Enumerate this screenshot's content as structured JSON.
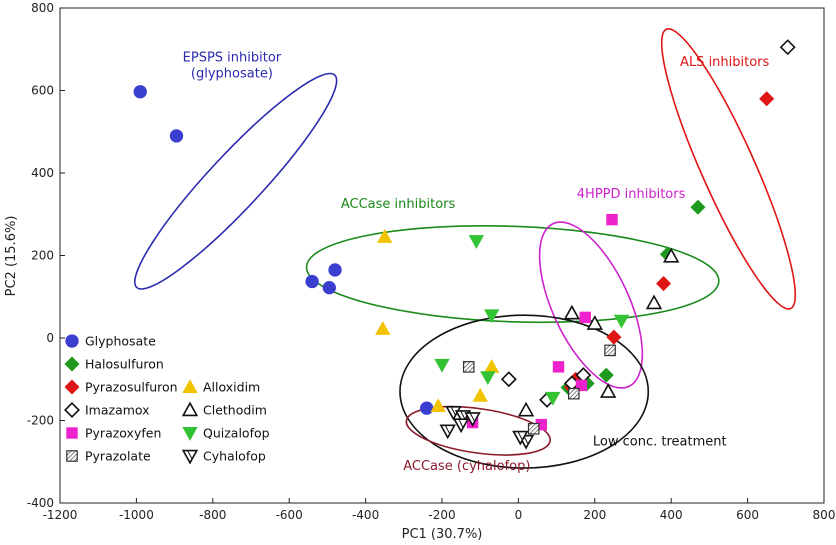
{
  "chart_data": {
    "type": "scatter",
    "xlabel": "PC1 (30.7%)",
    "ylabel": "PC2 (15.6%)",
    "xlim": [
      -1200,
      800
    ],
    "ylim": [
      -400,
      800
    ],
    "xticks": [
      -1200,
      -1000,
      -800,
      -600,
      -400,
      -200,
      0,
      200,
      400,
      600,
      800
    ],
    "yticks": [
      -400,
      -200,
      0,
      200,
      400,
      600,
      800
    ],
    "grid": false,
    "legend_position": "bottom-left",
    "series": [
      {
        "name": "Glyphosate",
        "marker": "circle",
        "color": "#3a3fcf",
        "filled": true,
        "points": [
          [
            -990,
            597
          ],
          [
            -895,
            490
          ],
          [
            -540,
            137
          ],
          [
            -480,
            165
          ],
          [
            -495,
            122
          ],
          [
            -240,
            -170
          ]
        ]
      },
      {
        "name": "Halosulfuron",
        "marker": "diamond",
        "color": "#1f9a1f",
        "filled": true,
        "points": [
          [
            470,
            317
          ],
          [
            390,
            203
          ],
          [
            230,
            -90
          ],
          [
            180,
            -110
          ],
          [
            130,
            -120
          ]
        ]
      },
      {
        "name": "Pyrazosulfuron",
        "marker": "diamond",
        "color": "#e01515",
        "filled": true,
        "points": [
          [
            650,
            580
          ],
          [
            380,
            132
          ],
          [
            250,
            2
          ],
          [
            150,
            -100
          ],
          [
            140,
            -120
          ]
        ]
      },
      {
        "name": "Alloxidim",
        "marker": "triangle-up",
        "color": "#f2c300",
        "filled": true,
        "points": [
          [
            -350,
            245
          ],
          [
            -355,
            22
          ],
          [
            -70,
            -70
          ],
          [
            -100,
            -140
          ],
          [
            -210,
            -165
          ]
        ]
      },
      {
        "name": "Imazamox",
        "marker": "diamond",
        "color": "#111111",
        "filled": false,
        "points": [
          [
            705,
            705
          ],
          [
            -25,
            -100
          ],
          [
            170,
            -90
          ],
          [
            140,
            -110
          ],
          [
            75,
            -150
          ]
        ]
      },
      {
        "name": "Clethodim",
        "marker": "triangle-up",
        "color": "#111111",
        "filled": false,
        "points": [
          [
            400,
            198
          ],
          [
            355,
            85
          ],
          [
            140,
            60
          ],
          [
            200,
            35
          ],
          [
            235,
            -130
          ],
          [
            20,
            -175
          ]
        ]
      },
      {
        "name": "Pyrazoxyfen",
        "marker": "square",
        "color": "#ee22cc",
        "filled": true,
        "points": [
          [
            245,
            287
          ],
          [
            175,
            50
          ],
          [
            105,
            -70
          ],
          [
            165,
            -115
          ],
          [
            60,
            -210
          ],
          [
            -120,
            -205
          ]
        ]
      },
      {
        "name": "Quizalofop",
        "marker": "triangle-down",
        "color": "#33c233",
        "filled": true,
        "points": [
          [
            -110,
            235
          ],
          [
            -70,
            55
          ],
          [
            270,
            42
          ],
          [
            -200,
            -65
          ],
          [
            -80,
            -95
          ],
          [
            90,
            -145
          ]
        ]
      },
      {
        "name": "Pyrazolate",
        "marker": "hatched-square",
        "color": "#333333",
        "filled": false,
        "points": [
          [
            -130,
            -70
          ],
          [
            240,
            -30
          ],
          [
            145,
            -135
          ],
          [
            40,
            -220
          ]
        ]
      },
      {
        "name": "Cyhalofop",
        "marker": "triangle-down",
        "color": "#111111",
        "filled": false,
        "points": [
          [
            -170,
            -180
          ],
          [
            -145,
            -190
          ],
          [
            -120,
            -195
          ],
          [
            -185,
            -225
          ],
          [
            -150,
            -210
          ],
          [
            20,
            -250
          ],
          [
            5,
            -240
          ]
        ]
      }
    ],
    "legend": {
      "entries": [
        {
          "label": "Glyphosate",
          "series": 0
        },
        {
          "label": "Halosulfuron",
          "series": 1
        },
        {
          "label": "Pyrazosulfuron",
          "series": 2
        },
        {
          "label": "Alloxidim",
          "series": 3
        },
        {
          "label": "Imazamox",
          "series": 4
        },
        {
          "label": "Clethodim",
          "series": 5
        },
        {
          "label": "Pyrazoxyfen",
          "series": 6
        },
        {
          "label": "Quizalofop",
          "series": 7
        },
        {
          "label": "Pyrazolate",
          "series": 8
        },
        {
          "label": "Cyhalofop",
          "series": 9
        }
      ]
    },
    "annotations": [
      {
        "lines": [
          "EPSPS inhibitor",
          "(glyphosate)"
        ],
        "color": "#2a2ab0",
        "ellipse": {
          "cx": -740,
          "cy": 380,
          "rx": 380,
          "ry": 70,
          "angle_deg": 47
        },
        "label_at": [
          -750,
          670
        ]
      },
      {
        "lines": [
          "ALS inhibitors"
        ],
        "color": "#e01515",
        "ellipse": {
          "cx": 550,
          "cy": 410,
          "rx": 400,
          "ry": 70,
          "angle_deg": -66
        },
        "label_at": [
          540,
          660
        ]
      },
      {
        "lines": [
          "ACCase inhibitors"
        ],
        "color": "#1a8a1a",
        "ellipse": {
          "cx": -15,
          "cy": 155,
          "rx": 540,
          "ry": 125,
          "angle_deg": -2
        },
        "label_at": [
          -315,
          315
        ]
      },
      {
        "lines": [
          "4HPPD inhibitors"
        ],
        "color": "#cc22cc",
        "ellipse": {
          "cx": 190,
          "cy": 80,
          "rx": 235,
          "ry": 100,
          "angle_deg": -65
        },
        "label_at": [
          295,
          340
        ]
      },
      {
        "lines": [
          "Low conc. treatment"
        ],
        "color": "#111111",
        "ellipse": {
          "cx": 15,
          "cy": -130,
          "rx": 325,
          "ry": 200,
          "angle_deg": 0
        },
        "label_at": [
          370,
          -260
        ]
      },
      {
        "lines": [
          "ACCase (cyhalofop)"
        ],
        "color": "#8b1a2a",
        "ellipse": {
          "cx": -105,
          "cy": -225,
          "rx": 190,
          "ry": 58,
          "angle_deg": -8
        },
        "label_at": [
          -135,
          -320
        ]
      }
    ]
  }
}
